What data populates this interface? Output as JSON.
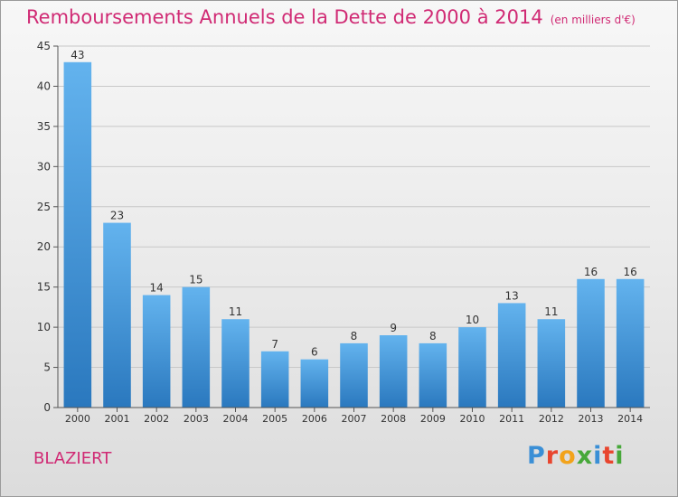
{
  "title": "Remboursements Annuels de la Dette de 2000 à 2014",
  "unit": "(en milliers d'€)",
  "commune": "BLAZIERT",
  "logo": {
    "text": "Proxiti",
    "letter_colors": [
      "#3a8fd6",
      "#e8452e",
      "#f2a31b",
      "#47a83a",
      "#3a8fd6",
      "#e8452e",
      "#47a83a"
    ]
  },
  "colors": {
    "title": "#d02a74",
    "bar_light": "#63b3ee",
    "bar_dark": "#2a78be",
    "grid": "#c8c8c8",
    "axis": "#555555"
  },
  "chart_data": {
    "type": "bar",
    "title": "Remboursements Annuels de la Dette de 2000 à 2014",
    "categories": [
      "2000",
      "2001",
      "2002",
      "2003",
      "2004",
      "2005",
      "2006",
      "2007",
      "2008",
      "2009",
      "2010",
      "2011",
      "2012",
      "2013",
      "2014"
    ],
    "values": [
      43,
      23,
      14,
      15,
      11,
      7,
      6,
      8,
      9,
      8,
      10,
      13,
      11,
      16,
      16
    ],
    "ylim": [
      0,
      45
    ],
    "yticks": [
      0,
      5,
      10,
      15,
      20,
      25,
      30,
      35,
      40,
      45
    ],
    "grid": true,
    "data_labels": true
  }
}
